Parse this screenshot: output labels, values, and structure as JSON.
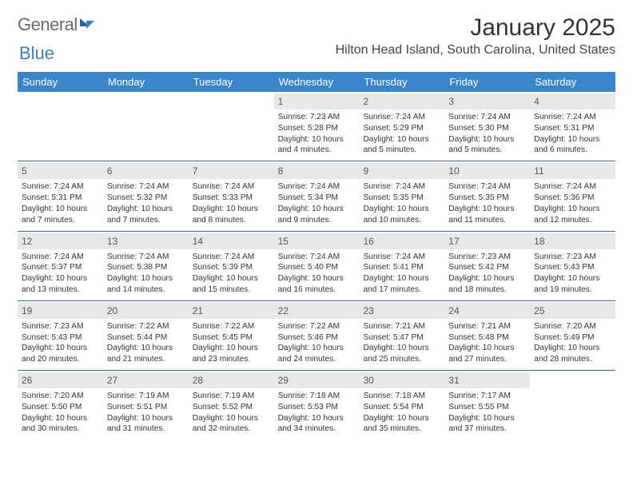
{
  "logo": {
    "word1": "General",
    "word2": "Blue"
  },
  "header": {
    "month_title": "January 2025",
    "location": "Hilton Head Island, South Carolina, United States"
  },
  "calendar": {
    "type": "table",
    "header_bg": "#3a85c9",
    "header_fg": "#ffffff",
    "daynum_bg": "#e8e8e8",
    "border_color": "#3a6a9a",
    "weekdays": [
      "Sunday",
      "Monday",
      "Tuesday",
      "Wednesday",
      "Thursday",
      "Friday",
      "Saturday"
    ],
    "weeks": [
      [
        {
          "num": "",
          "lines": []
        },
        {
          "num": "",
          "lines": []
        },
        {
          "num": "",
          "lines": []
        },
        {
          "num": "1",
          "lines": [
            "Sunrise: 7:23 AM",
            "Sunset: 5:28 PM",
            "Daylight: 10 hours and 4 minutes."
          ]
        },
        {
          "num": "2",
          "lines": [
            "Sunrise: 7:24 AM",
            "Sunset: 5:29 PM",
            "Daylight: 10 hours and 5 minutes."
          ]
        },
        {
          "num": "3",
          "lines": [
            "Sunrise: 7:24 AM",
            "Sunset: 5:30 PM",
            "Daylight: 10 hours and 5 minutes."
          ]
        },
        {
          "num": "4",
          "lines": [
            "Sunrise: 7:24 AM",
            "Sunset: 5:31 PM",
            "Daylight: 10 hours and 6 minutes."
          ]
        }
      ],
      [
        {
          "num": "5",
          "lines": [
            "Sunrise: 7:24 AM",
            "Sunset: 5:31 PM",
            "Daylight: 10 hours and 7 minutes."
          ]
        },
        {
          "num": "6",
          "lines": [
            "Sunrise: 7:24 AM",
            "Sunset: 5:32 PM",
            "Daylight: 10 hours and 7 minutes."
          ]
        },
        {
          "num": "7",
          "lines": [
            "Sunrise: 7:24 AM",
            "Sunset: 5:33 PM",
            "Daylight: 10 hours and 8 minutes."
          ]
        },
        {
          "num": "8",
          "lines": [
            "Sunrise: 7:24 AM",
            "Sunset: 5:34 PM",
            "Daylight: 10 hours and 9 minutes."
          ]
        },
        {
          "num": "9",
          "lines": [
            "Sunrise: 7:24 AM",
            "Sunset: 5:35 PM",
            "Daylight: 10 hours and 10 minutes."
          ]
        },
        {
          "num": "10",
          "lines": [
            "Sunrise: 7:24 AM",
            "Sunset: 5:35 PM",
            "Daylight: 10 hours and 11 minutes."
          ]
        },
        {
          "num": "11",
          "lines": [
            "Sunrise: 7:24 AM",
            "Sunset: 5:36 PM",
            "Daylight: 10 hours and 12 minutes."
          ]
        }
      ],
      [
        {
          "num": "12",
          "lines": [
            "Sunrise: 7:24 AM",
            "Sunset: 5:37 PM",
            "Daylight: 10 hours and 13 minutes."
          ]
        },
        {
          "num": "13",
          "lines": [
            "Sunrise: 7:24 AM",
            "Sunset: 5:38 PM",
            "Daylight: 10 hours and 14 minutes."
          ]
        },
        {
          "num": "14",
          "lines": [
            "Sunrise: 7:24 AM",
            "Sunset: 5:39 PM",
            "Daylight: 10 hours and 15 minutes."
          ]
        },
        {
          "num": "15",
          "lines": [
            "Sunrise: 7:24 AM",
            "Sunset: 5:40 PM",
            "Daylight: 10 hours and 16 minutes."
          ]
        },
        {
          "num": "16",
          "lines": [
            "Sunrise: 7:24 AM",
            "Sunset: 5:41 PM",
            "Daylight: 10 hours and 17 minutes."
          ]
        },
        {
          "num": "17",
          "lines": [
            "Sunrise: 7:23 AM",
            "Sunset: 5:42 PM",
            "Daylight: 10 hours and 18 minutes."
          ]
        },
        {
          "num": "18",
          "lines": [
            "Sunrise: 7:23 AM",
            "Sunset: 5:43 PM",
            "Daylight: 10 hours and 19 minutes."
          ]
        }
      ],
      [
        {
          "num": "19",
          "lines": [
            "Sunrise: 7:23 AM",
            "Sunset: 5:43 PM",
            "Daylight: 10 hours and 20 minutes."
          ]
        },
        {
          "num": "20",
          "lines": [
            "Sunrise: 7:22 AM",
            "Sunset: 5:44 PM",
            "Daylight: 10 hours and 21 minutes."
          ]
        },
        {
          "num": "21",
          "lines": [
            "Sunrise: 7:22 AM",
            "Sunset: 5:45 PM",
            "Daylight: 10 hours and 23 minutes."
          ]
        },
        {
          "num": "22",
          "lines": [
            "Sunrise: 7:22 AM",
            "Sunset: 5:46 PM",
            "Daylight: 10 hours and 24 minutes."
          ]
        },
        {
          "num": "23",
          "lines": [
            "Sunrise: 7:21 AM",
            "Sunset: 5:47 PM",
            "Daylight: 10 hours and 25 minutes."
          ]
        },
        {
          "num": "24",
          "lines": [
            "Sunrise: 7:21 AM",
            "Sunset: 5:48 PM",
            "Daylight: 10 hours and 27 minutes."
          ]
        },
        {
          "num": "25",
          "lines": [
            "Sunrise: 7:20 AM",
            "Sunset: 5:49 PM",
            "Daylight: 10 hours and 28 minutes."
          ]
        }
      ],
      [
        {
          "num": "26",
          "lines": [
            "Sunrise: 7:20 AM",
            "Sunset: 5:50 PM",
            "Daylight: 10 hours and 30 minutes."
          ]
        },
        {
          "num": "27",
          "lines": [
            "Sunrise: 7:19 AM",
            "Sunset: 5:51 PM",
            "Daylight: 10 hours and 31 minutes."
          ]
        },
        {
          "num": "28",
          "lines": [
            "Sunrise: 7:19 AM",
            "Sunset: 5:52 PM",
            "Daylight: 10 hours and 32 minutes."
          ]
        },
        {
          "num": "29",
          "lines": [
            "Sunrise: 7:18 AM",
            "Sunset: 5:53 PM",
            "Daylight: 10 hours and 34 minutes."
          ]
        },
        {
          "num": "30",
          "lines": [
            "Sunrise: 7:18 AM",
            "Sunset: 5:54 PM",
            "Daylight: 10 hours and 35 minutes."
          ]
        },
        {
          "num": "31",
          "lines": [
            "Sunrise: 7:17 AM",
            "Sunset: 5:55 PM",
            "Daylight: 10 hours and 37 minutes."
          ]
        },
        {
          "num": "",
          "lines": []
        }
      ]
    ]
  }
}
